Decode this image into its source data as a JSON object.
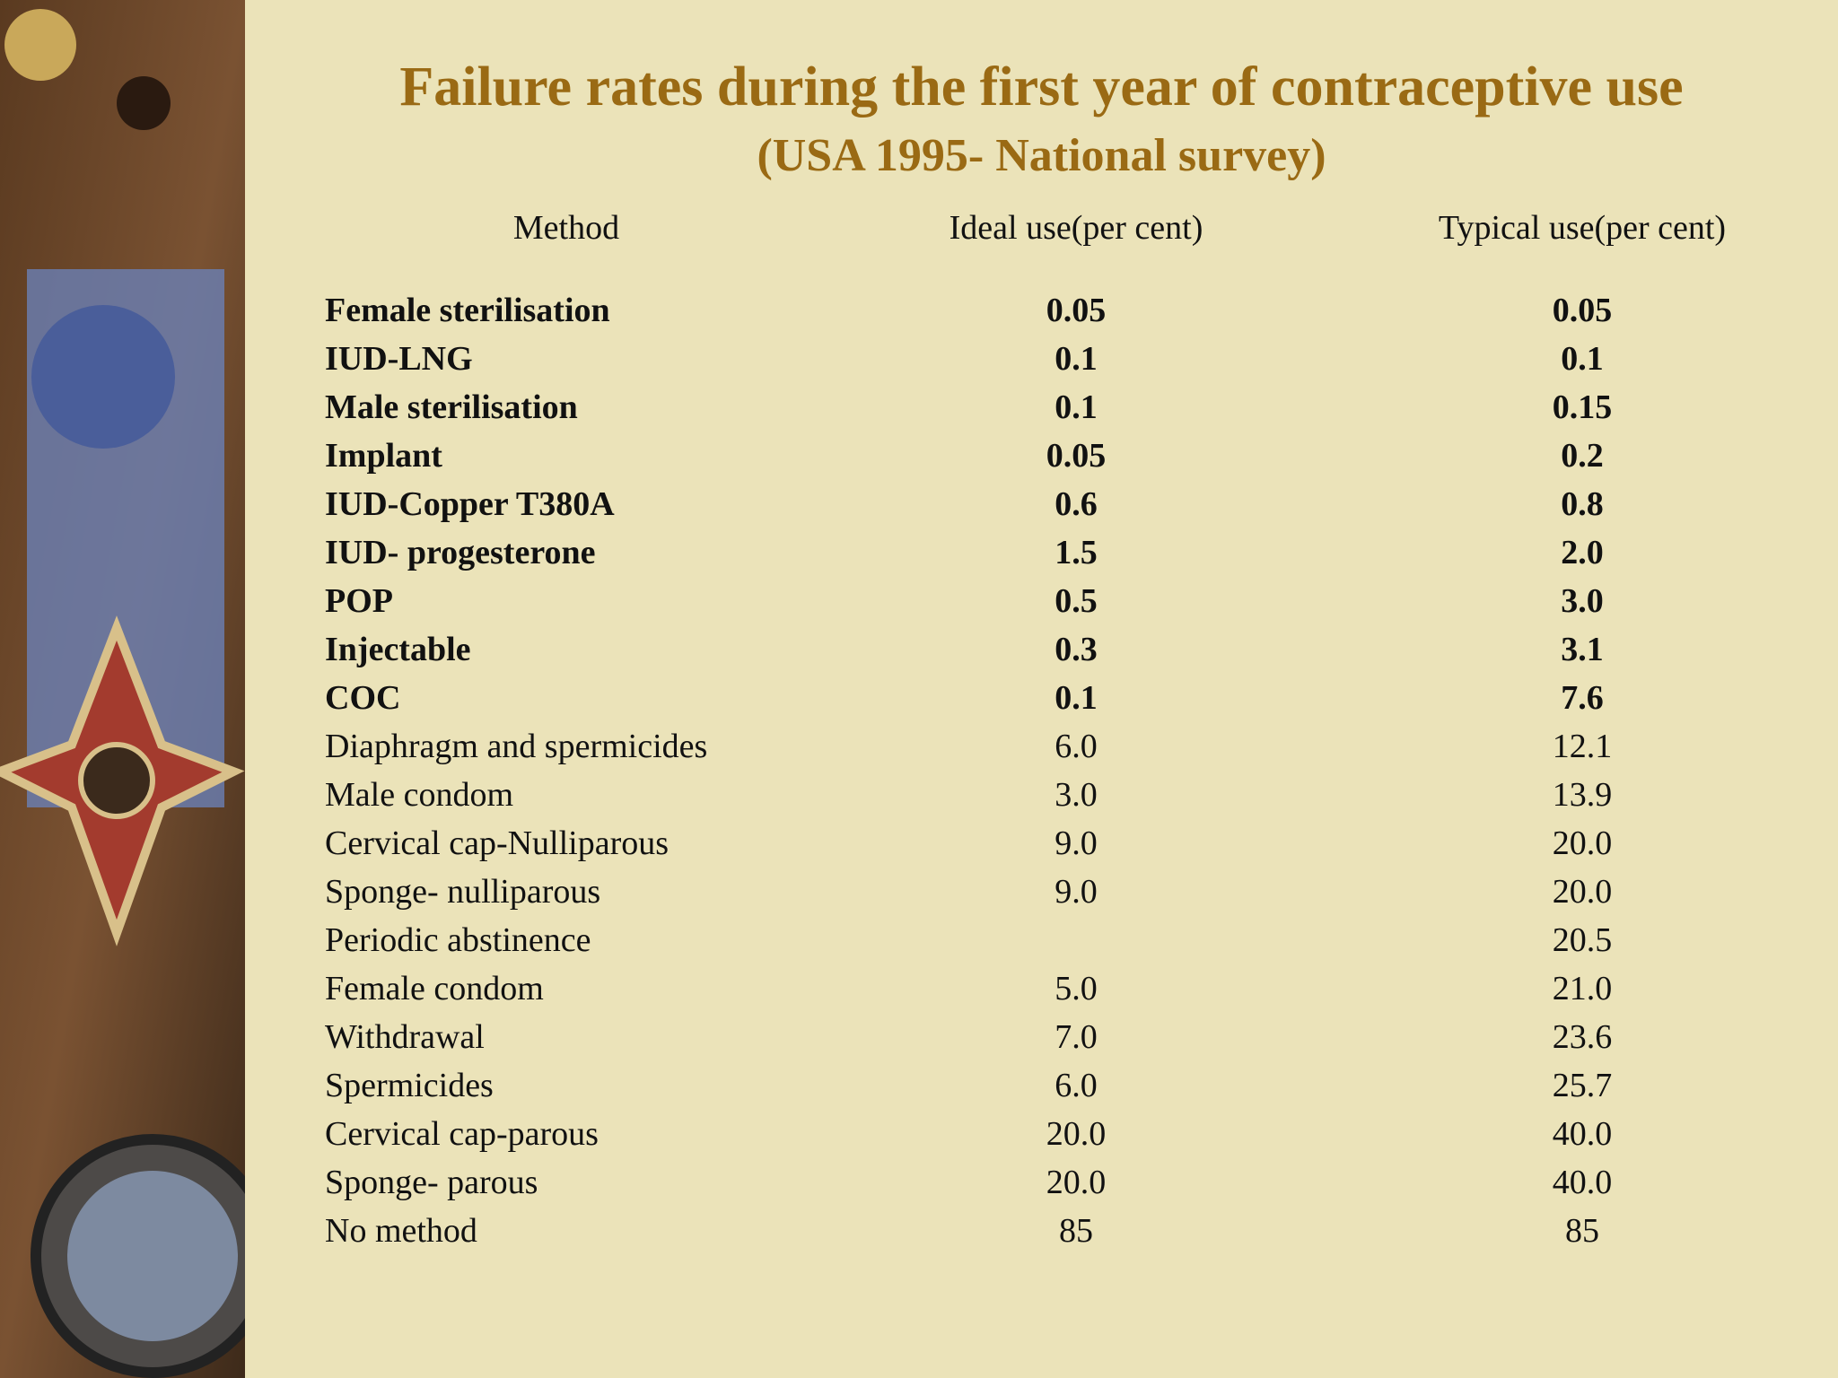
{
  "header": {
    "title": "Failure rates during the first year of contraceptive use",
    "subtitle": "(USA 1995- National survey)"
  },
  "table": {
    "columns": [
      "Method",
      "Ideal use(per cent)",
      "Typical use(per cent)"
    ],
    "rows": [
      [
        "Female sterilisation",
        "0.05",
        "0.05"
      ],
      [
        "IUD-LNG",
        "0.1",
        "0.1"
      ],
      [
        "Male sterilisation",
        "0.1",
        "0.15"
      ],
      [
        "Implant",
        "0.05",
        "0.2"
      ],
      [
        "IUD-Copper T380A",
        "0.6",
        "0.8"
      ],
      [
        "IUD- progesterone",
        "1.5",
        "2.0"
      ],
      [
        "POP",
        "0.5",
        "3.0"
      ],
      [
        "Injectable",
        "0.3",
        "3.1"
      ],
      [
        "COC",
        "0.1",
        "7.6"
      ],
      [
        "Diaphragm and spermicides",
        "6.0",
        "12.1"
      ],
      [
        "Male condom",
        "3.0",
        "13.9"
      ],
      [
        "Cervical cap-Nulliparous",
        "9.0",
        "20.0"
      ],
      [
        "Sponge- nulliparous",
        "9.0",
        "20.0"
      ],
      [
        "Periodic abstinence",
        null,
        "20.5"
      ],
      [
        "Female condom",
        "5.0",
        "21.0"
      ],
      [
        "Withdrawal",
        "7.0",
        "23.6"
      ],
      [
        "Spermicides",
        "6.0",
        "25.7"
      ],
      [
        "Cervical cap-parous",
        "20.0",
        "40.0"
      ],
      [
        "Sponge- parous",
        "20.0",
        "40.0"
      ],
      [
        "No method",
        "85",
        "85"
      ]
    ]
  }
}
